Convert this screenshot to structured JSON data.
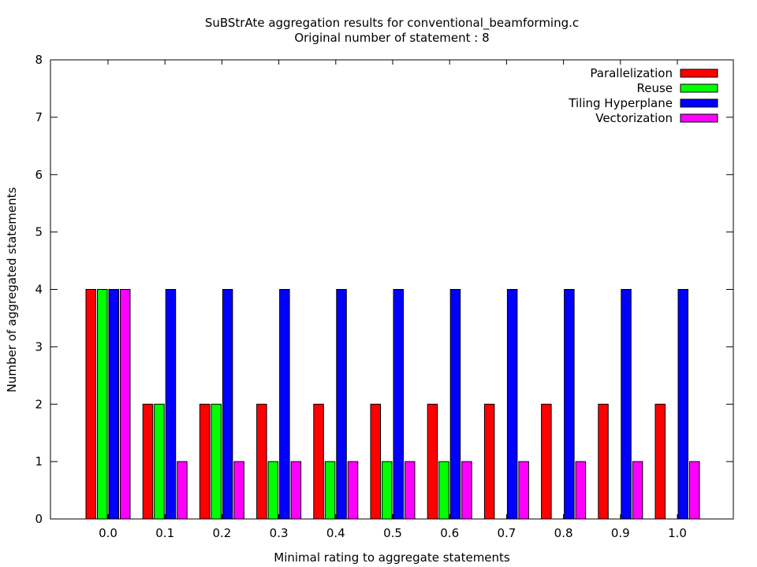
{
  "chart_data": {
    "type": "bar",
    "title": "SuBStrAte aggregation results for conventional_beamforming.c",
    "subtitle": "Original number of statement : 8",
    "xlabel": "Minimal rating to aggregate statements",
    "ylabel": "Number of aggregated statements",
    "categories": [
      "0.0",
      "0.1",
      "0.2",
      "0.3",
      "0.4",
      "0.5",
      "0.6",
      "0.7",
      "0.8",
      "0.9",
      "1.0"
    ],
    "ylim": [
      0,
      8
    ],
    "yticks": [
      0,
      1,
      2,
      3,
      4,
      5,
      6,
      7,
      8
    ],
    "grid": false,
    "legend_position": "top-right",
    "series": [
      {
        "name": "Parallelization",
        "color": "#ff0000",
        "values": [
          4,
          2,
          2,
          2,
          2,
          2,
          2,
          2,
          2,
          2,
          2
        ]
      },
      {
        "name": "Reuse",
        "color": "#00ff00",
        "values": [
          4,
          2,
          2,
          1,
          1,
          1,
          1,
          0,
          0,
          0,
          0
        ]
      },
      {
        "name": "Tiling Hyperplane",
        "color": "#0000ff",
        "values": [
          4,
          4,
          4,
          4,
          4,
          4,
          4,
          4,
          4,
          4,
          4
        ]
      },
      {
        "name": "Vectorization",
        "color": "#ff00ff",
        "values": [
          4,
          1,
          1,
          1,
          1,
          1,
          1,
          1,
          1,
          1,
          1
        ]
      }
    ]
  }
}
